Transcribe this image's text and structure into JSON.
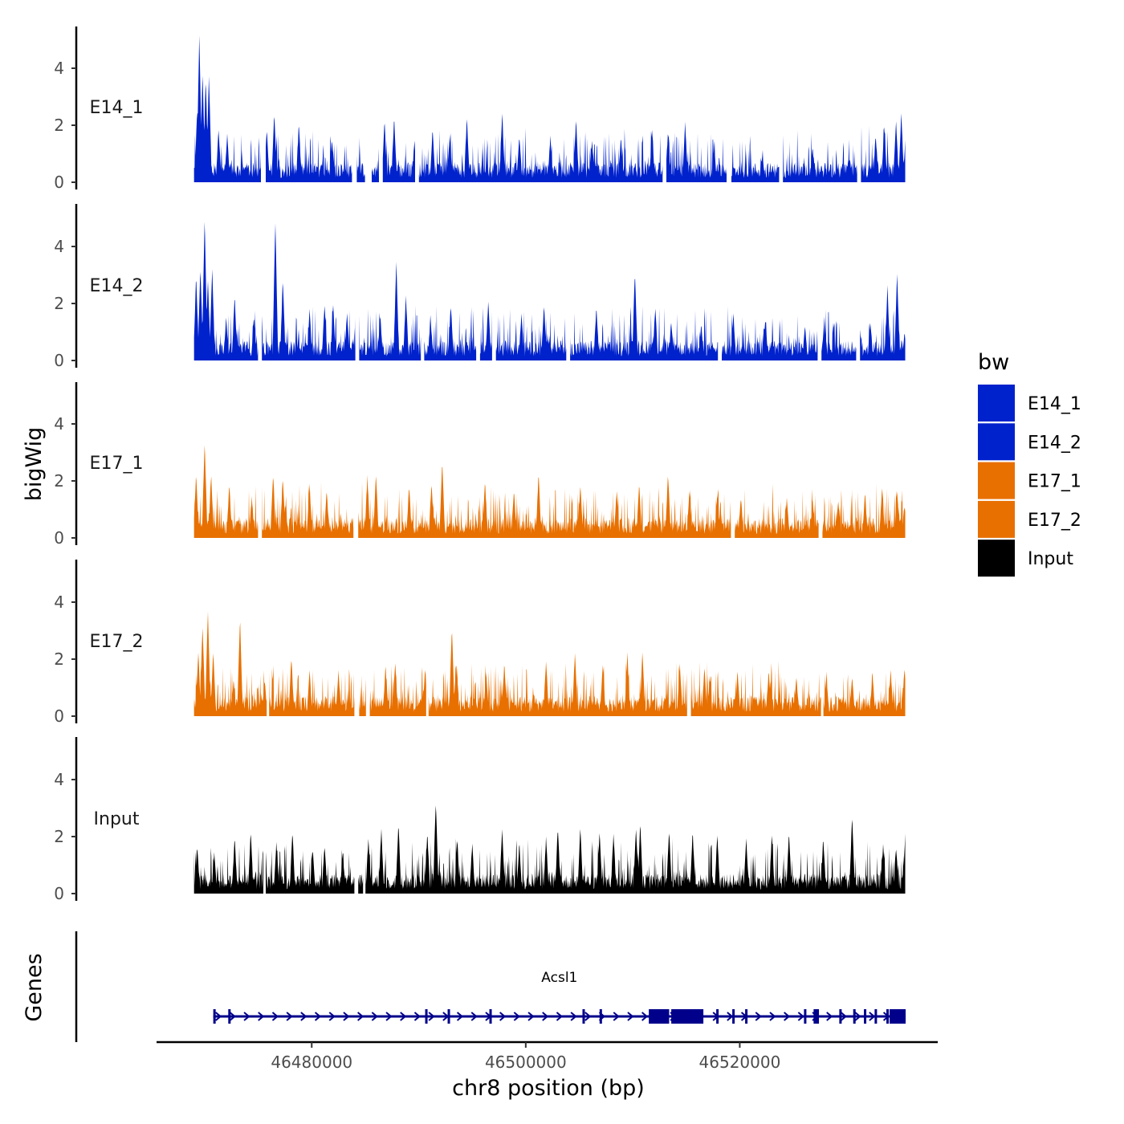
{
  "chart_data": {
    "type": "area",
    "title": "",
    "ylabel": "bigWig",
    "xlabel": "chr8 position (bp)",
    "chromosome": "chr8",
    "xlim": [
      46465500,
      46538500
    ],
    "data_range": [
      46469000,
      46535500
    ],
    "ylim": [
      0,
      5.5
    ],
    "yticks": [
      0,
      2,
      4
    ],
    "xticks": [
      46480000,
      46500000,
      46520000
    ],
    "xtick_labels": [
      "46480000",
      "46500000",
      "46520000"
    ],
    "series": [
      {
        "name": "E14_1",
        "color": "#0022CC",
        "peaks": [
          [
            46469300,
            2.4
          ],
          [
            46469500,
            5.2
          ],
          [
            46469800,
            3.8
          ],
          [
            46470100,
            3.6
          ],
          [
            46470400,
            3.7
          ],
          [
            46471300,
            1.8
          ],
          [
            46472100,
            1.6
          ],
          [
            46475800,
            1.8
          ],
          [
            46476500,
            2.4
          ],
          [
            46478800,
            2.0
          ],
          [
            46481900,
            1.5
          ],
          [
            46486800,
            2.1
          ],
          [
            46487700,
            2.2
          ],
          [
            46489600,
            1.4
          ],
          [
            46491300,
            1.8
          ],
          [
            46492900,
            1.6
          ],
          [
            46494500,
            2.2
          ],
          [
            46497800,
            2.4
          ],
          [
            46499400,
            1.6
          ],
          [
            46502300,
            1.5
          ],
          [
            46504700,
            2.2
          ],
          [
            46506200,
            1.4
          ],
          [
            46508900,
            1.5
          ],
          [
            46511800,
            1.8
          ],
          [
            46513300,
            1.7
          ],
          [
            46514900,
            2.0
          ],
          [
            46517600,
            1.2
          ],
          [
            46522100,
            0.9
          ],
          [
            46526800,
            1.2
          ],
          [
            46530200,
            0.9
          ],
          [
            46532700,
            1.6
          ],
          [
            46533500,
            1.9
          ],
          [
            46534600,
            2.1
          ],
          [
            46535100,
            2.4
          ],
          [
            46535500,
            1.6
          ]
        ],
        "gaps": [
          [
            46475300,
            46475700
          ],
          [
            46483800,
            46484200
          ],
          [
            46485000,
            46485600
          ],
          [
            46486300,
            46486600
          ],
          [
            46489700,
            46490000
          ],
          [
            46512800,
            46513100
          ],
          [
            46518800,
            46519200
          ],
          [
            46523700,
            46524000
          ],
          [
            46531000,
            46531300
          ]
        ]
      },
      {
        "name": "E14_2",
        "color": "#0022CC",
        "peaks": [
          [
            46469200,
            3.0
          ],
          [
            46469600,
            3.2
          ],
          [
            46470000,
            5.0
          ],
          [
            46470300,
            2.8
          ],
          [
            46470700,
            3.2
          ],
          [
            46472000,
            1.4
          ],
          [
            46472800,
            2.2
          ],
          [
            46474600,
            1.5
          ],
          [
            46476600,
            4.9
          ],
          [
            46477300,
            2.8
          ],
          [
            46479800,
            1.7
          ],
          [
            46481200,
            1.9
          ],
          [
            46482000,
            1.9
          ],
          [
            46483300,
            1.6
          ],
          [
            46486400,
            1.5
          ],
          [
            46487900,
            3.4
          ],
          [
            46488800,
            2.2
          ],
          [
            46491100,
            1.5
          ],
          [
            46493000,
            1.9
          ],
          [
            46496500,
            2.0
          ],
          [
            46499600,
            1.6
          ],
          [
            46501700,
            1.9
          ],
          [
            46506600,
            1.8
          ],
          [
            46510200,
            3.1
          ],
          [
            46512100,
            1.8
          ],
          [
            46513600,
            1.3
          ],
          [
            46516400,
            1.2
          ],
          [
            46519400,
            1.6
          ],
          [
            46522400,
            1.4
          ],
          [
            46526100,
            1.1
          ],
          [
            46527900,
            1.3
          ],
          [
            46531200,
            1.2
          ],
          [
            46532200,
            1.3
          ],
          [
            46533800,
            2.5
          ],
          [
            46534700,
            3.0
          ],
          [
            46535400,
            0.9
          ]
        ],
        "gaps": [
          [
            46475000,
            46475300
          ],
          [
            46484100,
            46484400
          ],
          [
            46490200,
            46490500
          ],
          [
            46495400,
            46495700
          ],
          [
            46496900,
            46497200
          ],
          [
            46503800,
            46504100
          ],
          [
            46518000,
            46518300
          ],
          [
            46527300,
            46527600
          ],
          [
            46530900,
            46531200
          ]
        ]
      },
      {
        "name": "E17_1",
        "color": "#E87000",
        "peaks": [
          [
            46469200,
            2.2
          ],
          [
            46470000,
            3.3
          ],
          [
            46470600,
            2.2
          ],
          [
            46472300,
            1.8
          ],
          [
            46474400,
            1.4
          ],
          [
            46476400,
            2.2
          ],
          [
            46477300,
            2.1
          ],
          [
            46479800,
            1.8
          ],
          [
            46481400,
            1.6
          ],
          [
            46485200,
            2.1
          ],
          [
            46486000,
            2.2
          ],
          [
            46489100,
            1.8
          ],
          [
            46491200,
            1.9
          ],
          [
            46492200,
            2.6
          ],
          [
            46496200,
            1.9
          ],
          [
            46498900,
            1.6
          ],
          [
            46501200,
            2.2
          ],
          [
            46505100,
            1.8
          ],
          [
            46508500,
            1.6
          ],
          [
            46510600,
            1.8
          ],
          [
            46513300,
            2.2
          ],
          [
            46515300,
            1.6
          ],
          [
            46517900,
            1.5
          ],
          [
            46520100,
            1.4
          ],
          [
            46524400,
            1.4
          ],
          [
            46526800,
            1.3
          ],
          [
            46529200,
            1.3
          ],
          [
            46531700,
            1.5
          ],
          [
            46533300,
            1.7
          ],
          [
            46534700,
            1.6
          ],
          [
            46535400,
            1.1
          ]
        ],
        "gaps": [
          [
            46475000,
            46475300
          ],
          [
            46483900,
            46484300
          ],
          [
            46519200,
            46519500
          ],
          [
            46527400,
            46527700
          ]
        ]
      },
      {
        "name": "E17_2",
        "color": "#E87000",
        "peaks": [
          [
            46469400,
            2.2
          ],
          [
            46469800,
            3.2
          ],
          [
            46470300,
            3.7
          ],
          [
            46470800,
            2.2
          ],
          [
            46472700,
            1.2
          ],
          [
            46473300,
            3.4
          ],
          [
            46475600,
            1.2
          ],
          [
            46478100,
            2.0
          ],
          [
            46479800,
            1.5
          ],
          [
            46482500,
            1.5
          ],
          [
            46486900,
            1.7
          ],
          [
            46487800,
            1.9
          ],
          [
            46490600,
            1.6
          ],
          [
            46493100,
            3.1
          ],
          [
            46493500,
            1.8
          ],
          [
            46496300,
            1.5
          ],
          [
            46498000,
            1.8
          ],
          [
            46501900,
            1.9
          ],
          [
            46504600,
            2.2
          ],
          [
            46507200,
            1.8
          ],
          [
            46509500,
            2.1
          ],
          [
            46510900,
            2.2
          ],
          [
            46514400,
            1.8
          ],
          [
            46516700,
            1.6
          ],
          [
            46519800,
            1.5
          ],
          [
            46522700,
            1.5
          ],
          [
            46525300,
            1.3
          ],
          [
            46528100,
            1.4
          ],
          [
            46530500,
            1.3
          ],
          [
            46532400,
            1.4
          ],
          [
            46534100,
            1.5
          ],
          [
            46535400,
            1.6
          ]
        ],
        "gaps": [
          [
            46475800,
            46476000
          ],
          [
            46484000,
            46484400
          ],
          [
            46485100,
            46485400
          ],
          [
            46490700,
            46490900
          ],
          [
            46515100,
            46515400
          ],
          [
            46527600,
            46527800
          ]
        ]
      },
      {
        "name": "Input",
        "color": "#000000",
        "peaks": [
          [
            46469300,
            1.6
          ],
          [
            46470900,
            1.4
          ],
          [
            46472800,
            1.9
          ],
          [
            46474300,
            2.1
          ],
          [
            46475600,
            2.4
          ],
          [
            46476700,
            1.7
          ],
          [
            46478200,
            2.1
          ],
          [
            46480100,
            1.5
          ],
          [
            46481200,
            1.6
          ],
          [
            46482900,
            1.4
          ],
          [
            46485300,
            1.9
          ],
          [
            46486500,
            2.2
          ],
          [
            46488100,
            2.4
          ],
          [
            46490800,
            2.1
          ],
          [
            46491600,
            3.2
          ],
          [
            46493600,
            1.9
          ],
          [
            46495000,
            1.7
          ],
          [
            46497800,
            2.2
          ],
          [
            46499400,
            1.7
          ],
          [
            46501900,
            1.9
          ],
          [
            46503000,
            2.3
          ],
          [
            46505100,
            2.3
          ],
          [
            46506900,
            2.1
          ],
          [
            46508200,
            2.1
          ],
          [
            46510300,
            2.3
          ],
          [
            46510700,
            2.4
          ],
          [
            46513400,
            2.2
          ],
          [
            46515600,
            2.1
          ],
          [
            46517900,
            2.0
          ],
          [
            46520600,
            1.9
          ],
          [
            46523000,
            2.0
          ],
          [
            46524600,
            2.1
          ],
          [
            46527800,
            1.9
          ],
          [
            46530500,
            2.7
          ],
          [
            46533400,
            1.7
          ],
          [
            46534600,
            1.6
          ],
          [
            46535500,
            2.4
          ]
        ],
        "gaps": [
          [
            46475500,
            46475700
          ],
          [
            46484000,
            46484300
          ],
          [
            46484800,
            46485000
          ]
        ]
      }
    ],
    "legend": {
      "title": "bw",
      "position": "right",
      "entries": [
        {
          "label": "E14_1",
          "color": "#0022CC"
        },
        {
          "label": "E14_2",
          "color": "#0022CC"
        },
        {
          "label": "E17_1",
          "color": "#E87000"
        },
        {
          "label": "E17_2",
          "color": "#E87000"
        },
        {
          "label": "Input",
          "color": "#000000"
        }
      ]
    },
    "genes": {
      "title": "Genes",
      "color": "#00008B",
      "items": [
        {
          "name": "Acsl1",
          "start": 46470800,
          "end": 46535500,
          "strand": "+",
          "exons": [
            [
              46470800,
              46471000
            ],
            [
              46472200,
              46472300
            ],
            [
              46490600,
              46490700
            ],
            [
              46492700,
              46492900
            ],
            [
              46496600,
              46496700
            ],
            [
              46505300,
              46505400
            ],
            [
              46506900,
              46507000
            ],
            [
              46511500,
              46513400
            ],
            [
              46513600,
              46516600
            ],
            [
              46517800,
              46517900
            ],
            [
              46519300,
              46519400
            ],
            [
              46520500,
              46520700
            ],
            [
              46526000,
              46526100
            ],
            [
              46526900,
              46527400
            ],
            [
              46529300,
              46529400
            ],
            [
              46530600,
              46530700
            ],
            [
              46531600,
              46531700
            ],
            [
              46532600,
              46532700
            ],
            [
              46533700,
              46533800
            ],
            [
              46534000,
              46535500
            ]
          ]
        }
      ]
    }
  }
}
